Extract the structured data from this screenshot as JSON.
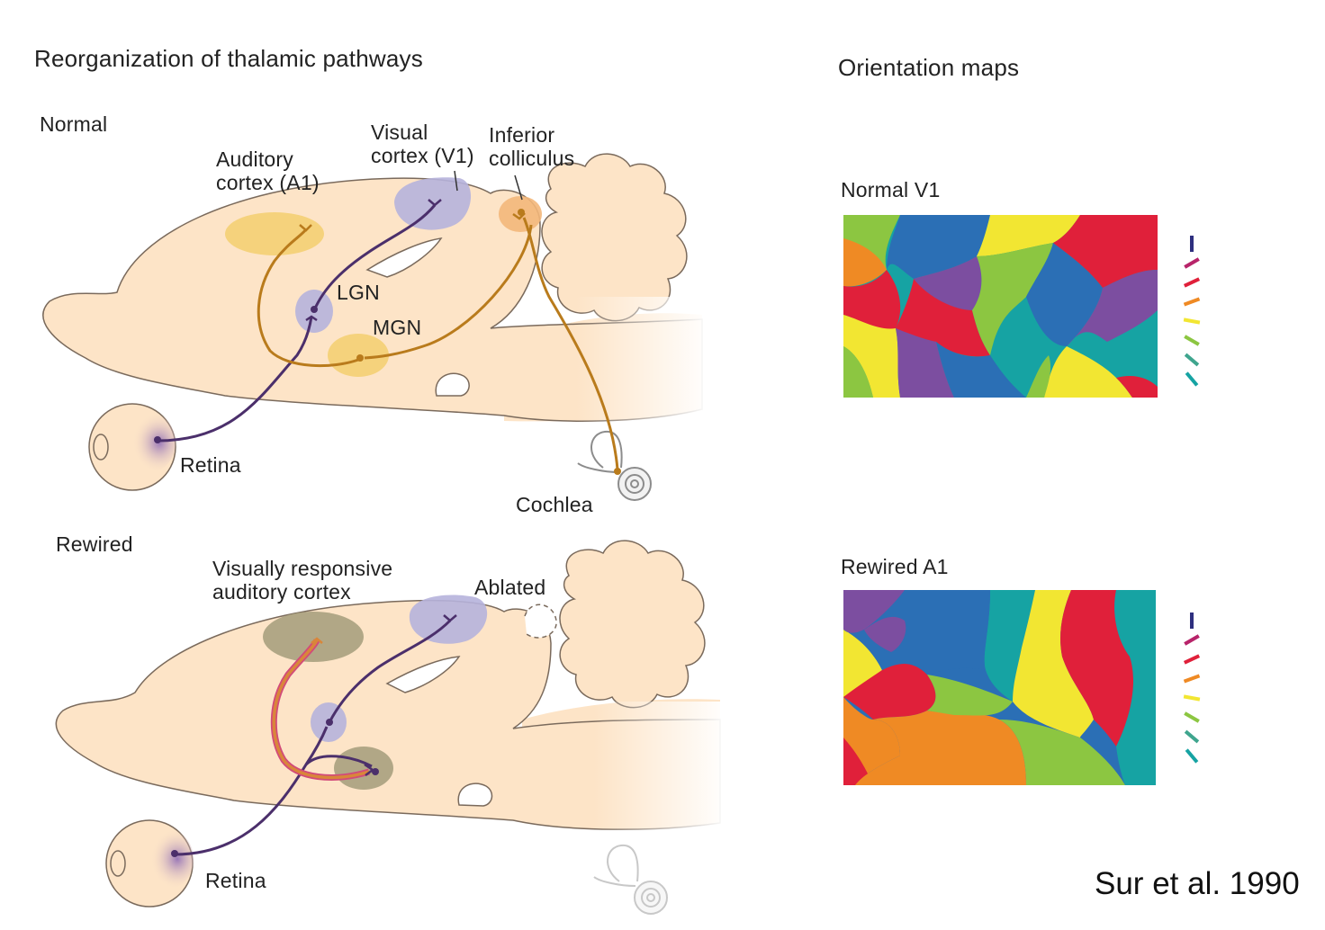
{
  "section_titles": {
    "left": "Reorganization of thalamic pathways",
    "right": "Orientation maps"
  },
  "normal_panel": {
    "title": "Normal",
    "labels": {
      "auditory_cortex": "Auditory\ncortex (A1)",
      "visual_cortex": "Visual\ncortex (V1)",
      "inferior_colliculus": "Inferior\ncolliculus",
      "lgn": "LGN",
      "mgn": "MGN",
      "retina": "Retina",
      "cochlea": "Cochlea"
    }
  },
  "rewired_panel": {
    "title": "Rewired",
    "labels": {
      "visually_responsive": "Visually responsive\nauditory cortex",
      "ablated": "Ablated",
      "retina": "Retina"
    }
  },
  "orientation_maps": [
    {
      "title": "Normal V1"
    },
    {
      "title": "Rewired A1"
    }
  ],
  "orientation_legend_colors": [
    "#2e2f7f",
    "#b8246a",
    "#e0203a",
    "#ef8a24",
    "#f2e632",
    "#8cc641",
    "#3fa58e",
    "#16a3a3"
  ],
  "colors": {
    "brain": "#fde4c7",
    "visual_pathway": "#4b2f6b",
    "auditory_pathway": "#b97b1c",
    "visual_cortex_fill": "#b6b3dc",
    "auditory_cortex_fill": "#f3cf6e",
    "rewired_cortex_fill": "#a39c7a"
  },
  "citation": "Sur et al. 1990"
}
